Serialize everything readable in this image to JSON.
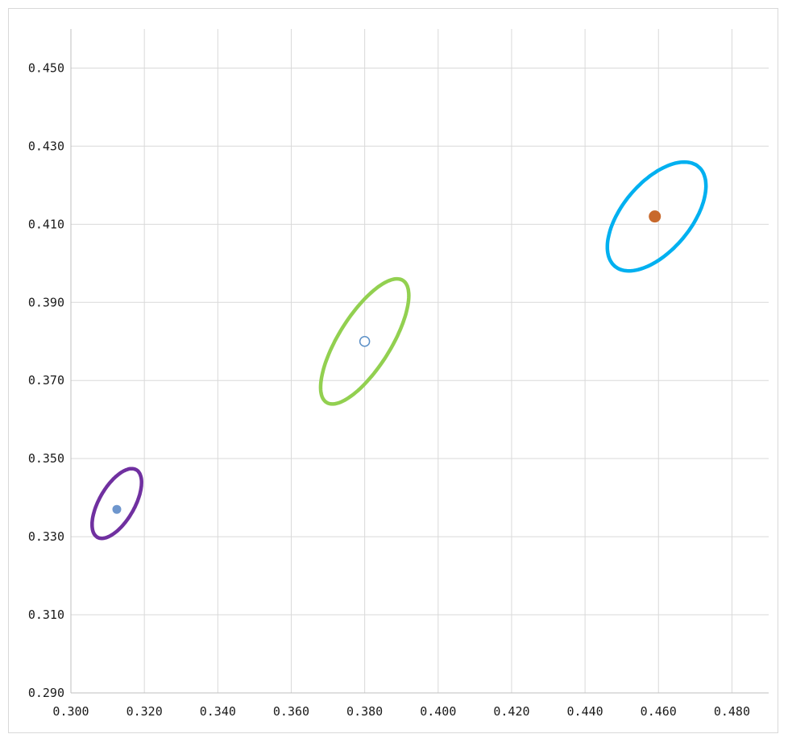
{
  "chart_data": {
    "type": "scatter",
    "title": "",
    "xlabel": "",
    "ylabel": "",
    "xlim": [
      0.3,
      0.49
    ],
    "ylim": [
      0.29,
      0.46
    ],
    "grid": true,
    "legend": "none",
    "x_ticks": [
      "0.300",
      "0.320",
      "0.340",
      "0.360",
      "0.380",
      "0.400",
      "0.420",
      "0.440",
      "0.460",
      "0.480"
    ],
    "x_tick_values": [
      0.3,
      0.32,
      0.34,
      0.36,
      0.38,
      0.4,
      0.42,
      0.44,
      0.46,
      0.48
    ],
    "y_ticks": [
      "0.290",
      "0.310",
      "0.330",
      "0.350",
      "0.370",
      "0.390",
      "0.410",
      "0.430",
      "0.450"
    ],
    "y_tick_values": [
      0.29,
      0.31,
      0.33,
      0.35,
      0.37,
      0.39,
      0.41,
      0.43,
      0.45
    ],
    "points": [
      {
        "x": 0.3125,
        "y": 0.337,
        "color": "#6e96cd",
        "marker": "filled"
      },
      {
        "x": 0.38,
        "y": 0.38,
        "color": "#5b8fc6",
        "marker": "hollow"
      },
      {
        "x": 0.459,
        "y": 0.412,
        "color": "#c8692c",
        "marker": "filled"
      }
    ],
    "ellipses": [
      {
        "cx": 0.3125,
        "cy": 0.3385,
        "rx": 0.0106,
        "ry": 0.0048,
        "angle_deg": -60,
        "color": "#7030a0"
      },
      {
        "cx": 0.38,
        "cy": 0.38,
        "rx": 0.0196,
        "ry": 0.0071,
        "angle_deg": -58,
        "color": "#92d050"
      },
      {
        "cx": 0.4595,
        "cy": 0.412,
        "rx": 0.0177,
        "ry": 0.0093,
        "angle_deg": -50,
        "color": "#00b0f0"
      }
    ]
  }
}
